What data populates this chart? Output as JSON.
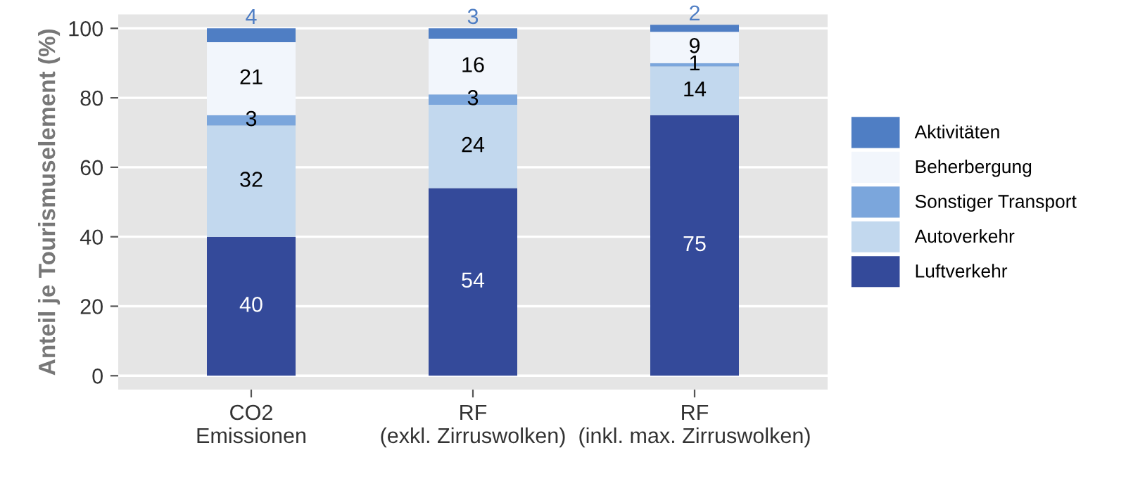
{
  "chart_data": {
    "type": "bar",
    "stacked": true,
    "ylabel": "Anteil je Tourismuselement (%)",
    "categories": [
      "CO2\nEmissionen",
      "RF\n(exkl. Zirruswolken)",
      "RF\n(inkl. max. Zirruswolken)"
    ],
    "series": [
      {
        "name": "Luftverkehr",
        "color": "#344a9a",
        "values": [
          40,
          54,
          75
        ]
      },
      {
        "name": "Autoverkehr",
        "color": "#c2d8ee",
        "values": [
          32,
          24,
          14
        ]
      },
      {
        "name": "Sonstiger Transport",
        "color": "#7ba6dc",
        "values": [
          3,
          3,
          1
        ]
      },
      {
        "name": "Beherbergung",
        "color": "#f2f6fc",
        "values": [
          21,
          16,
          9
        ]
      },
      {
        "name": "Aktivitäten",
        "color": "#4f7ec4",
        "values": [
          4,
          3,
          2
        ]
      }
    ],
    "ylim": [
      -4,
      104
    ],
    "yticks": [
      0,
      20,
      40,
      60,
      80,
      100
    ],
    "grid": "y",
    "legend": "right",
    "data_labels": true
  }
}
